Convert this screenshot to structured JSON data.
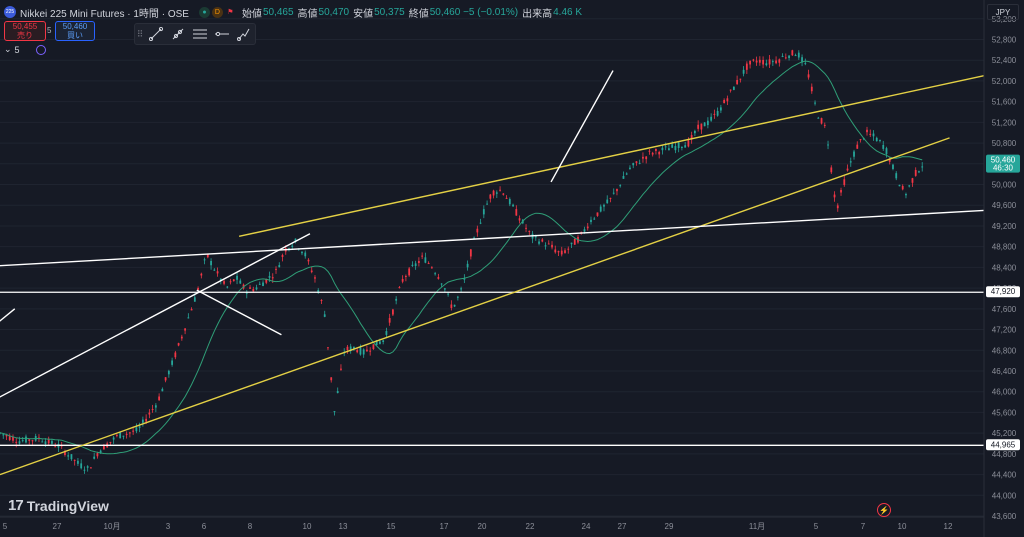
{
  "header": {
    "logo_text": "225",
    "symbol": "Nikkei 225 Mini Futures · 1時間 · OSE",
    "badge_green": "●",
    "badge_orange": "D",
    "labels": [
      {
        "k": "始値",
        "v": "50,465"
      },
      {
        "k": "高値",
        "v": "50,470"
      },
      {
        "k": "安値",
        "v": "50,375"
      },
      {
        "k": "終値",
        "v": "50,460 −5 (−0.01%)"
      },
      {
        "k": "出来高",
        "v": "4.46 K"
      }
    ]
  },
  "quotes": {
    "sell_price": "50,455",
    "sell_label": "売り",
    "spread": "5",
    "buy_price": "50,460",
    "buy_label": "買い"
  },
  "indicator": {
    "label": "5",
    "chevron": "⌄"
  },
  "currency": "JPY",
  "brand": {
    "mark": "17",
    "name": "TradingView"
  },
  "colors": {
    "background": "#161a25",
    "up": "#26a69a",
    "down": "#f23645",
    "ma": "#2f9e77",
    "trend_yellow": "#e3d045",
    "trend_white": "#ffffff",
    "axis_text": "#8c8f99"
  },
  "chart_data": {
    "type": "candlestick",
    "y_ticks": [
      "53,200",
      "52,800",
      "52,400",
      "52,000",
      "51,600",
      "51,200",
      "50,800",
      "50,400",
      "50,000",
      "49,600",
      "49,200",
      "48,800",
      "48,400",
      "48,000",
      "47,600",
      "47,200",
      "46,800",
      "46,400",
      "46,000",
      "45,600",
      "45,200",
      "44,800",
      "44,400",
      "44,000",
      "43,600"
    ],
    "ylim": [
      43600,
      53350
    ],
    "x_ticks": [
      "5",
      "27",
      "10月",
      "3",
      "6",
      "8",
      "10",
      "13",
      "15",
      "17",
      "20",
      "22",
      "24",
      "27",
      "29",
      "11月",
      "5",
      "7",
      "10",
      "12"
    ],
    "price_labels": [
      {
        "text": "50,460",
        "sub": "46:30",
        "value": 50460,
        "color": "#26a69a"
      },
      {
        "text": "47,920",
        "value": 47920,
        "color": "#ffffff"
      },
      {
        "text": "44,965",
        "value": 44965,
        "color": "#ffffff"
      }
    ],
    "horizontal_lines": [
      47920,
      44965
    ],
    "path_points": [
      [
        0,
        45200
      ],
      [
        2,
        45050
      ],
      [
        4,
        45100
      ],
      [
        6,
        44950
      ],
      [
        8,
        44600
      ],
      [
        9,
        44500
      ],
      [
        10,
        44850
      ],
      [
        12,
        45150
      ],
      [
        14,
        45250
      ],
      [
        16,
        45800
      ],
      [
        18,
        46800
      ],
      [
        20,
        47900
      ],
      [
        21,
        48650
      ],
      [
        22,
        48300
      ],
      [
        23,
        48000
      ],
      [
        24,
        48200
      ],
      [
        25,
        47950
      ],
      [
        26,
        48000
      ],
      [
        28,
        48300
      ],
      [
        29,
        48750
      ],
      [
        30,
        48900
      ],
      [
        31,
        48650
      ],
      [
        32,
        48200
      ],
      [
        33,
        47500
      ],
      [
        34,
        45600
      ],
      [
        35,
        46800
      ],
      [
        36,
        46850
      ],
      [
        37,
        46750
      ],
      [
        38,
        46900
      ],
      [
        39,
        47000
      ],
      [
        40,
        47600
      ],
      [
        41,
        48200
      ],
      [
        42,
        48400
      ],
      [
        43,
        48600
      ],
      [
        44,
        48400
      ],
      [
        45,
        48100
      ],
      [
        46,
        47600
      ],
      [
        47,
        48000
      ],
      [
        48,
        48800
      ],
      [
        49,
        49400
      ],
      [
        50,
        49850
      ],
      [
        51,
        49900
      ],
      [
        52,
        49600
      ],
      [
        53,
        49300
      ],
      [
        54,
        49000
      ],
      [
        55,
        48900
      ],
      [
        56,
        48800
      ],
      [
        57,
        48650
      ],
      [
        58,
        48800
      ],
      [
        59,
        49000
      ],
      [
        60,
        49300
      ],
      [
        62,
        49700
      ],
      [
        64,
        50300
      ],
      [
        66,
        50600
      ],
      [
        68,
        50700
      ],
      [
        70,
        50800
      ],
      [
        71,
        51100
      ],
      [
        72,
        51200
      ],
      [
        73,
        51400
      ],
      [
        74,
        51700
      ],
      [
        75,
        52000
      ],
      [
        76,
        52300
      ],
      [
        77,
        52400
      ],
      [
        78,
        52350
      ],
      [
        79,
        52400
      ],
      [
        80,
        52500
      ],
      [
        81,
        52550
      ],
      [
        82,
        52250
      ],
      [
        83,
        51400
      ],
      [
        84,
        51050
      ],
      [
        85,
        49500
      ],
      [
        86,
        50200
      ],
      [
        87,
        50700
      ],
      [
        88,
        51000
      ],
      [
        89,
        50900
      ],
      [
        90,
        50700
      ],
      [
        91,
        50200
      ],
      [
        92,
        49800
      ],
      [
        93,
        50200
      ],
      [
        94,
        50450
      ]
    ],
    "trendlines": [
      {
        "color": "yellow",
        "from": [
          0.0,
          44400
        ],
        "to": [
          96.5,
          50900
        ]
      },
      {
        "color": "yellow",
        "from": [
          24.3,
          49000
        ],
        "to": [
          100,
          52100
        ]
      },
      {
        "color": "white",
        "from": [
          -3,
          48400
        ],
        "to": [
          100,
          49500
        ]
      },
      {
        "color": "white",
        "from": [
          -3,
          45600
        ],
        "to": [
          31.5,
          49050
        ]
      },
      {
        "color": "white",
        "from": [
          -3,
          46900
        ],
        "to": [
          1.5,
          47600
        ]
      },
      {
        "color": "white",
        "from": [
          20.0,
          47960
        ],
        "to": [
          28.6,
          47100
        ]
      },
      {
        "color": "white",
        "from": [
          56.0,
          50050
        ],
        "to": [
          62.3,
          52200
        ]
      }
    ]
  },
  "toolbar": {
    "grip": "⠿",
    "tools": [
      "trendline-tool",
      "ray-tool",
      "parallel-channel-tool",
      "horizontal-line-tool",
      "path-tool"
    ]
  }
}
